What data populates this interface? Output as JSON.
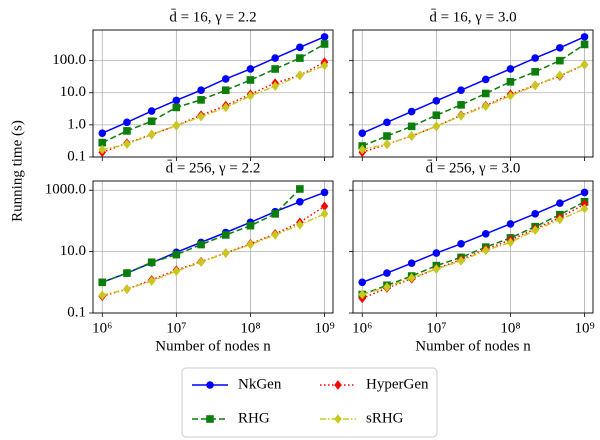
{
  "ylabel": "Running time (s)",
  "chart_data": [
    {
      "type": "line",
      "title": "d̄ = 16, γ = 2.2",
      "xscale": "log",
      "yscale": "log",
      "grid": true,
      "x": [
        1000000,
        2154435,
        4641589,
        10000000,
        21544347,
        46415888,
        100000000,
        215443469,
        464158883,
        1000000000
      ],
      "xlim": [
        750000,
        1300000000
      ],
      "ylim": [
        0.1,
        900
      ],
      "xticks": [
        1000000,
        10000000,
        100000000,
        1000000000
      ],
      "yticks": [
        0.1,
        {
          "value": 1,
          "label": "1.0"
        },
        {
          "value": 10,
          "label": "10.0"
        },
        {
          "value": 100,
          "label": "100.0"
        }
      ],
      "series": [
        {
          "name": "NkGen",
          "color": "#0000ff",
          "marker": "circle",
          "linestyle": "solid",
          "values": [
            0.55,
            1.2,
            2.7,
            5.8,
            12,
            27,
            55,
            120,
            260,
            550
          ]
        },
        {
          "name": "RHG",
          "color": "#0a7d0a",
          "marker": "square",
          "linestyle": "dashed",
          "values": [
            0.28,
            0.65,
            1.3,
            3.5,
            6,
            12,
            25,
            55,
            120,
            330
          ]
        },
        {
          "name": "HyperGen",
          "color": "#ff0000",
          "marker": "diamond",
          "linestyle": "dotted",
          "values": [
            0.14,
            0.27,
            0.5,
            0.95,
            2,
            4,
            9,
            20,
            35,
            90
          ]
        },
        {
          "name": "sRHG",
          "color": "#c8c81e",
          "marker": "diamond",
          "linestyle": "dashdot",
          "values": [
            0.17,
            0.25,
            0.5,
            0.95,
            1.8,
            3.5,
            8,
            16,
            35,
            70
          ]
        }
      ]
    },
    {
      "type": "line",
      "title": "d̄ = 16, γ = 3.0",
      "xscale": "log",
      "yscale": "log",
      "grid": true,
      "x": [
        1000000,
        2154435,
        4641589,
        10000000,
        21544347,
        46415888,
        100000000,
        215443469,
        464158883,
        1000000000
      ],
      "xlim": [
        750000,
        1300000000
      ],
      "ylim": [
        0.1,
        900
      ],
      "xticks": [
        1000000,
        10000000,
        100000000,
        1000000000
      ],
      "yticks": [
        0.1,
        1,
        10,
        100
      ],
      "series": [
        {
          "name": "NkGen",
          "color": "#0000ff",
          "marker": "circle",
          "linestyle": "solid",
          "values": [
            0.55,
            1.2,
            2.6,
            5.6,
            12,
            26,
            55,
            120,
            250,
            550
          ]
        },
        {
          "name": "RHG",
          "color": "#0a7d0a",
          "marker": "square",
          "linestyle": "dashed",
          "values": [
            0.22,
            0.45,
            0.9,
            2,
            4.2,
            9.5,
            22,
            45,
            100,
            320
          ]
        },
        {
          "name": "HyperGen",
          "color": "#ff0000",
          "marker": "diamond",
          "linestyle": "dotted",
          "values": [
            0.14,
            0.25,
            0.45,
            0.9,
            2,
            4,
            9,
            17,
            33,
            75
          ]
        },
        {
          "name": "sRHG",
          "color": "#c8c81e",
          "marker": "diamond",
          "linestyle": "dashdot",
          "values": [
            0.17,
            0.25,
            0.45,
            0.9,
            1.9,
            3.8,
            8,
            17,
            35,
            75
          ]
        }
      ]
    },
    {
      "type": "line",
      "title": "d̄ = 256, γ = 2.2",
      "xlabel": "Number of nodes n",
      "xscale": "log",
      "yscale": "log",
      "grid": true,
      "x": [
        1000000,
        2154435,
        4641589,
        10000000,
        21544347,
        46415888,
        100000000,
        215443469,
        464158883,
        1000000000
      ],
      "xlim": [
        750000,
        1300000000
      ],
      "ylim": [
        0.1,
        2000
      ],
      "xticks": [
        {
          "value": 1000000,
          "label": "10⁶"
        },
        {
          "value": 10000000,
          "label": "10⁷"
        },
        {
          "value": 100000000,
          "label": "10⁸"
        },
        {
          "value": 1000000000,
          "label": "10⁹"
        }
      ],
      "yticks": [
        0.1,
        {
          "value": 10,
          "label": "10.0"
        },
        {
          "value": 1000,
          "label": "1000.0"
        }
      ],
      "series": [
        {
          "name": "NkGen",
          "color": "#0000ff",
          "marker": "circle",
          "linestyle": "solid",
          "values": [
            1.0,
            2.0,
            4.3,
            9.5,
            20,
            42,
            90,
            200,
            420,
            850
          ]
        },
        {
          "name": "RHG",
          "color": "#0a7d0a",
          "marker": "square",
          "linestyle": "dashed",
          "values": [
            1.0,
            2.0,
            4.5,
            8.0,
            17,
            35,
            70,
            170,
            1100,
            null
          ]
        },
        {
          "name": "HyperGen",
          "color": "#ff0000",
          "marker": "diamond",
          "linestyle": "dotted",
          "values": [
            0.35,
            0.6,
            1.2,
            2.5,
            4.7,
            9,
            18,
            38,
            90,
            300
          ]
        },
        {
          "name": "sRHG",
          "color": "#c8c81e",
          "marker": "diamond",
          "linestyle": "dashdot",
          "values": [
            0.38,
            0.6,
            1.1,
            2.3,
            4.5,
            9,
            17,
            35,
            75,
            170
          ]
        }
      ]
    },
    {
      "type": "line",
      "title": "d̄ = 256, γ = 3.0",
      "xlabel": "Number of nodes n",
      "xscale": "log",
      "yscale": "log",
      "grid": true,
      "x": [
        1000000,
        2154435,
        4641589,
        10000000,
        21544347,
        46415888,
        100000000,
        215443469,
        464158883,
        1000000000
      ],
      "xlim": [
        750000,
        1300000000
      ],
      "ylim": [
        0.1,
        2000
      ],
      "xticks": [
        {
          "value": 1000000,
          "label": "10⁶"
        },
        {
          "value": 10000000,
          "label": "10⁷"
        },
        {
          "value": 100000000,
          "label": "10⁸"
        },
        {
          "value": 1000000000,
          "label": "10⁹"
        }
      ],
      "yticks": [
        0.1,
        10,
        1000
      ],
      "series": [
        {
          "name": "NkGen",
          "color": "#0000ff",
          "marker": "circle",
          "linestyle": "solid",
          "values": [
            1.0,
            2.0,
            4.2,
            9,
            18,
            38,
            80,
            170,
            380,
            850
          ]
        },
        {
          "name": "RHG",
          "color": "#0a7d0a",
          "marker": "square",
          "linestyle": "dashed",
          "values": [
            0.4,
            0.8,
            1.6,
            3.5,
            6.5,
            14,
            28,
            65,
            160,
            420
          ]
        },
        {
          "name": "HyperGen",
          "color": "#ff0000",
          "marker": "diamond",
          "linestyle": "dotted",
          "values": [
            0.3,
            0.65,
            1.3,
            2.8,
            5.5,
            12,
            24,
            55,
            130,
            350
          ]
        },
        {
          "name": "sRHG",
          "color": "#c8c81e",
          "marker": "diamond",
          "linestyle": "dashdot",
          "values": [
            0.4,
            0.7,
            1.4,
            2.7,
            5,
            11,
            20,
            50,
            110,
            250
          ]
        }
      ]
    }
  ]
}
